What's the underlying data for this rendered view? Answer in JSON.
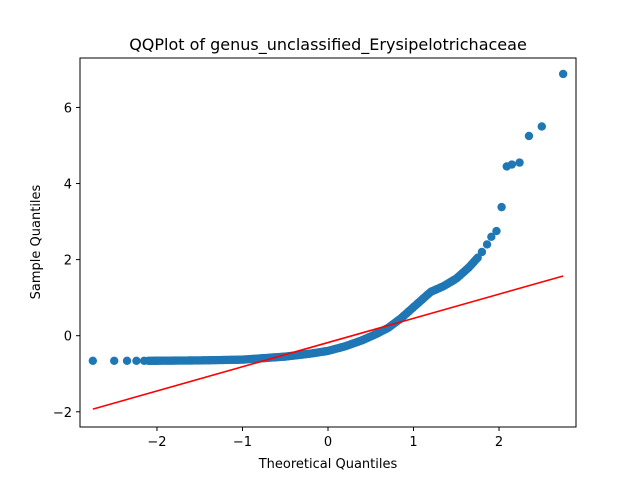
{
  "chart_data": {
    "type": "scatter",
    "title": "QQPlot of genus_unclassified_Erysipelotrichaceae",
    "xlabel": "Theoretical Quantiles",
    "ylabel": "Sample Quantiles",
    "xlim": [
      -2.9,
      2.9
    ],
    "ylim": [
      -2.4,
      7.3
    ],
    "xticks": [
      -2,
      -1,
      0,
      1,
      2
    ],
    "yticks": [
      -2,
      0,
      2,
      4,
      6
    ],
    "grid": false,
    "point_color": "#1f77b4",
    "line_color": "#ff0000",
    "reference_line": {
      "x": [
        -2.75,
        2.75
      ],
      "y": [
        -1.93,
        1.57
      ]
    },
    "tail_points": [
      [
        1.8,
        2.2
      ],
      [
        1.86,
        2.4
      ],
      [
        1.91,
        2.6
      ],
      [
        1.97,
        2.75
      ],
      [
        2.03,
        3.38
      ],
      [
        2.09,
        4.45
      ],
      [
        2.15,
        4.5
      ],
      [
        2.24,
        4.55
      ],
      [
        2.35,
        5.25
      ],
      [
        2.5,
        5.5
      ],
      [
        2.75,
        6.88
      ]
    ],
    "isolated_low_points": [
      [
        -2.75,
        -0.66
      ],
      [
        -2.5,
        -0.66
      ],
      [
        -2.35,
        -0.66
      ],
      [
        -2.24,
        -0.66
      ],
      [
        -2.15,
        -0.66
      ]
    ],
    "curve_knots": [
      [
        -2.1,
        -0.66
      ],
      [
        -1.5,
        -0.65
      ],
      [
        -1.0,
        -0.63
      ],
      [
        -0.5,
        -0.55
      ],
      [
        -0.2,
        -0.47
      ],
      [
        0.0,
        -0.4
      ],
      [
        0.2,
        -0.28
      ],
      [
        0.4,
        -0.12
      ],
      [
        0.55,
        0.03
      ],
      [
        0.7,
        0.2
      ],
      [
        0.85,
        0.45
      ],
      [
        1.0,
        0.75
      ],
      [
        1.1,
        0.95
      ],
      [
        1.2,
        1.15
      ],
      [
        1.35,
        1.3
      ],
      [
        1.5,
        1.5
      ],
      [
        1.65,
        1.8
      ],
      [
        1.75,
        2.05
      ]
    ],
    "curve_point_count": 220
  }
}
